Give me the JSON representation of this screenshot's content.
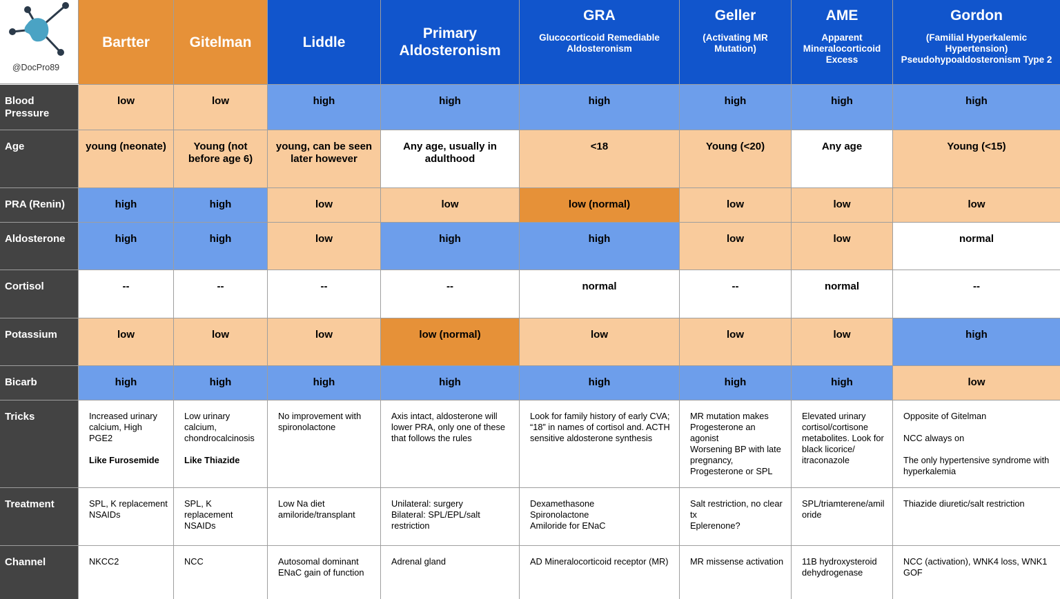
{
  "header": {
    "handle": "@DocPro89",
    "columns": [
      {
        "title": "Bartter",
        "fill": "#e69138"
      },
      {
        "title": "Gitelman",
        "fill": "#e69138"
      },
      {
        "title": "Liddle",
        "fill": "#1155cc"
      },
      {
        "title": "Primary Aldosteronism",
        "fill": "#1155cc"
      },
      {
        "title": "GRA",
        "subtitle": "Glucocorticoid Remediable Aldosteronism",
        "fill": "#1155cc"
      },
      {
        "title": "Geller",
        "subtitle": "(Activating MR Mutation)",
        "fill": "#1155cc"
      },
      {
        "title": "AME",
        "subtitle": "Apparent Mineralocorticoid Excess",
        "fill": "#1155cc"
      },
      {
        "title": "Gordon",
        "subtitle": "(Familial Hyperkalemic Hypertension) Pseudohypoaldosteronism Type 2",
        "fill": "#1155cc"
      }
    ]
  },
  "rows": [
    {
      "label": "Blood Pressure",
      "style": "summary",
      "cells": [
        {
          "text": "low",
          "fill": "#f9cb9c"
        },
        {
          "text": "low",
          "fill": "#f9cb9c"
        },
        {
          "text": "high",
          "fill": "#6d9eeb"
        },
        {
          "text": "high",
          "fill": "#6d9eeb"
        },
        {
          "text": "high",
          "fill": "#6d9eeb"
        },
        {
          "text": "high",
          "fill": "#6d9eeb"
        },
        {
          "text": "high",
          "fill": "#6d9eeb"
        },
        {
          "text": "high",
          "fill": "#6d9eeb"
        }
      ]
    },
    {
      "label": "Age",
      "style": "summary",
      "cells": [
        {
          "text": "young (neonate)",
          "fill": "#f9cb9c"
        },
        {
          "text": "Young (not before age 6)",
          "fill": "#f9cb9c"
        },
        {
          "text": "young, can be seen later however",
          "fill": "#f9cb9c"
        },
        {
          "text": "Any age, usually in adulthood",
          "fill": "#ffffff"
        },
        {
          "text": "<18",
          "fill": "#f9cb9c"
        },
        {
          "text": "Young (<20)",
          "fill": "#f9cb9c"
        },
        {
          "text": "Any age",
          "fill": "#ffffff"
        },
        {
          "text": "Young (<15)",
          "fill": "#f9cb9c"
        }
      ]
    },
    {
      "label": "PRA (Renin)",
      "style": "summary",
      "cells": [
        {
          "text": "high",
          "fill": "#6d9eeb"
        },
        {
          "text": "high",
          "fill": "#6d9eeb"
        },
        {
          "text": "low",
          "fill": "#f9cb9c"
        },
        {
          "text": "low",
          "fill": "#f9cb9c"
        },
        {
          "text": "low (normal)",
          "fill": "#e69138"
        },
        {
          "text": "low",
          "fill": "#f9cb9c"
        },
        {
          "text": "low",
          "fill": "#f9cb9c"
        },
        {
          "text": "low",
          "fill": "#f9cb9c"
        }
      ]
    },
    {
      "label": "Aldosterone",
      "style": "summary",
      "cells": [
        {
          "text": "high",
          "fill": "#6d9eeb"
        },
        {
          "text": "high",
          "fill": "#6d9eeb"
        },
        {
          "text": "low",
          "fill": "#f9cb9c"
        },
        {
          "text": "high",
          "fill": "#6d9eeb"
        },
        {
          "text": "high",
          "fill": "#6d9eeb"
        },
        {
          "text": "low",
          "fill": "#f9cb9c"
        },
        {
          "text": "low",
          "fill": "#f9cb9c"
        },
        {
          "text": "normal",
          "fill": "#ffffff"
        }
      ]
    },
    {
      "label": "Cortisol",
      "style": "summary",
      "cells": [
        {
          "text": "--",
          "fill": "#ffffff"
        },
        {
          "text": "--",
          "fill": "#ffffff"
        },
        {
          "text": "--",
          "fill": "#ffffff"
        },
        {
          "text": "--",
          "fill": "#ffffff"
        },
        {
          "text": "normal",
          "fill": "#ffffff"
        },
        {
          "text": "--",
          "fill": "#ffffff"
        },
        {
          "text": "normal",
          "fill": "#ffffff"
        },
        {
          "text": "--",
          "fill": "#ffffff"
        }
      ]
    },
    {
      "label": "Potassium",
      "style": "summary",
      "cells": [
        {
          "text": "low",
          "fill": "#f9cb9c"
        },
        {
          "text": "low",
          "fill": "#f9cb9c"
        },
        {
          "text": "low",
          "fill": "#f9cb9c"
        },
        {
          "text": "low (normal)",
          "fill": "#e69138"
        },
        {
          "text": "low",
          "fill": "#f9cb9c"
        },
        {
          "text": "low",
          "fill": "#f9cb9c"
        },
        {
          "text": "low",
          "fill": "#f9cb9c"
        },
        {
          "text": "high",
          "fill": "#6d9eeb"
        }
      ]
    },
    {
      "label": "Bicarb",
      "style": "summary",
      "cells": [
        {
          "text": "high",
          "fill": "#6d9eeb"
        },
        {
          "text": "high",
          "fill": "#6d9eeb"
        },
        {
          "text": "high",
          "fill": "#6d9eeb"
        },
        {
          "text": "high",
          "fill": "#6d9eeb"
        },
        {
          "text": "high",
          "fill": "#6d9eeb"
        },
        {
          "text": "high",
          "fill": "#6d9eeb"
        },
        {
          "text": "high",
          "fill": "#6d9eeb"
        },
        {
          "text": "low",
          "fill": "#f9cb9c"
        }
      ]
    },
    {
      "label": "Tricks",
      "style": "detail",
      "cells": [
        {
          "paragraphs": [
            [
              "Increased urinary calcium, High PGE2"
            ]
          ],
          "bold": "Like Furosemide",
          "fill": "#ffffff"
        },
        {
          "paragraphs": [
            [
              "Low urinary calcium, chondrocalcinosis"
            ]
          ],
          "bold": "Like Thiazide",
          "fill": "#ffffff"
        },
        {
          "paragraphs": [
            [
              "No improvement with spironolactone"
            ]
          ],
          "fill": "#ffffff"
        },
        {
          "paragraphs": [
            [
              "Axis intact, aldosterone will lower PRA, only one of these that follows the rules"
            ]
          ],
          "fill": "#ffffff"
        },
        {
          "paragraphs": [
            [
              "Look for family history of early CVA;  “18” in names of cortisol and. ACTH sensitive aldosterone synthesis"
            ]
          ],
          "fill": "#ffffff"
        },
        {
          "paragraphs": [
            [
              "MR mutation makes Progesterone an agonist",
              "Worsening BP with late pregnancy, Progesterone or SPL"
            ]
          ],
          "fill": "#ffffff"
        },
        {
          "paragraphs": [
            [
              "Elevated urinary cortisol/cortisone metabolites. Look for black licorice/ itraconazole"
            ]
          ],
          "fill": "#ffffff"
        },
        {
          "paragraphs": [
            [
              "Opposite of Gitelman"
            ],
            [
              "NCC always on"
            ],
            [
              "The only hypertensive syndrome with hyperkalemia"
            ]
          ],
          "fill": "#ffffff"
        }
      ]
    },
    {
      "label": "Treatment",
      "style": "detail",
      "cells": [
        {
          "paragraphs": [
            [
              "SPL, K replacement",
              "NSAIDs"
            ]
          ],
          "fill": "#ffffff"
        },
        {
          "paragraphs": [
            [
              "SPL, K replacement",
              "NSAIDs"
            ]
          ],
          "fill": "#ffffff"
        },
        {
          "paragraphs": [
            [
              "Low Na diet",
              "amiloride/transplant"
            ]
          ],
          "fill": "#ffffff"
        },
        {
          "paragraphs": [
            [
              "Unilateral: surgery",
              "Bilateral: SPL/EPL/salt restriction"
            ]
          ],
          "fill": "#ffffff"
        },
        {
          "paragraphs": [
            [
              "Dexamethasone",
              "Spironolactone",
              "Amiloride for ENaC"
            ]
          ],
          "fill": "#ffffff"
        },
        {
          "paragraphs": [
            [
              "Salt restriction, no clear tx",
              "Eplerenone?"
            ]
          ],
          "fill": "#ffffff"
        },
        {
          "paragraphs": [
            [
              "SPL/triamterene/amiloride"
            ]
          ],
          "fill": "#ffffff"
        },
        {
          "paragraphs": [
            [
              "Thiazide diuretic/salt restriction"
            ]
          ],
          "fill": "#ffffff"
        }
      ]
    },
    {
      "label": "Channel",
      "style": "detail",
      "cells": [
        {
          "paragraphs": [
            [
              "NKCC2"
            ]
          ],
          "fill": "#ffffff"
        },
        {
          "paragraphs": [
            [
              "NCC"
            ]
          ],
          "fill": "#ffffff"
        },
        {
          "paragraphs": [
            [
              "Autosomal dominant ENaC gain of function"
            ]
          ],
          "fill": "#ffffff"
        },
        {
          "paragraphs": [
            [
              "Adrenal gland"
            ]
          ],
          "fill": "#ffffff"
        },
        {
          "paragraphs": [
            [
              "AD Mineralocorticoid receptor (MR)"
            ]
          ],
          "fill": "#ffffff"
        },
        {
          "paragraphs": [
            [
              "MR missense activation"
            ]
          ],
          "fill": "#ffffff"
        },
        {
          "paragraphs": [
            [
              "11B hydroxysteroid dehydrogenase"
            ]
          ],
          "fill": "#ffffff"
        },
        {
          "paragraphs": [
            [
              "NCC (activation), WNK4 loss, WNK1 GOF"
            ]
          ],
          "fill": "#ffffff"
        }
      ]
    }
  ]
}
